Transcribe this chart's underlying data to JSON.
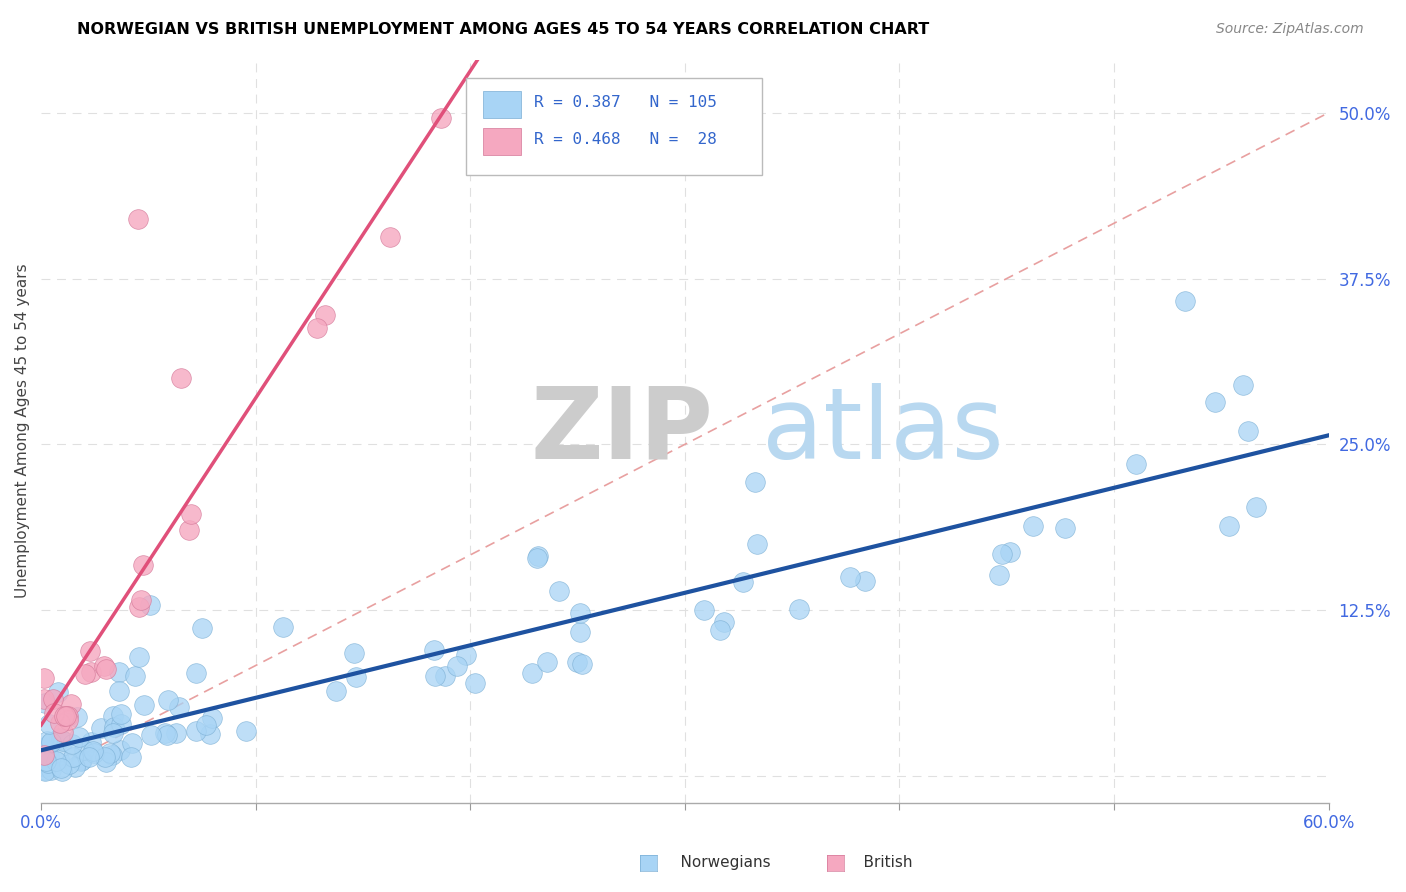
{
  "title": "NORWEGIAN VS BRITISH UNEMPLOYMENT AMONG AGES 45 TO 54 YEARS CORRELATION CHART",
  "source": "Source: ZipAtlas.com",
  "ylabel": "Unemployment Among Ages 45 to 54 years",
  "xmin": 0.0,
  "xmax": 0.6,
  "ymin": -0.02,
  "ymax": 0.54,
  "watermark_zip": "ZIP",
  "watermark_atlas": "atlas",
  "color_norwegian": "#A8D4F5",
  "color_british": "#F5A8C0",
  "color_norwegian_edge": "#7AAED4",
  "color_british_edge": "#D47898",
  "color_norwegian_line": "#1E52A0",
  "color_british_line": "#E0507A",
  "color_diag_line": "#E8B0B0",
  "nor_seed": 12,
  "brit_seed": 7
}
